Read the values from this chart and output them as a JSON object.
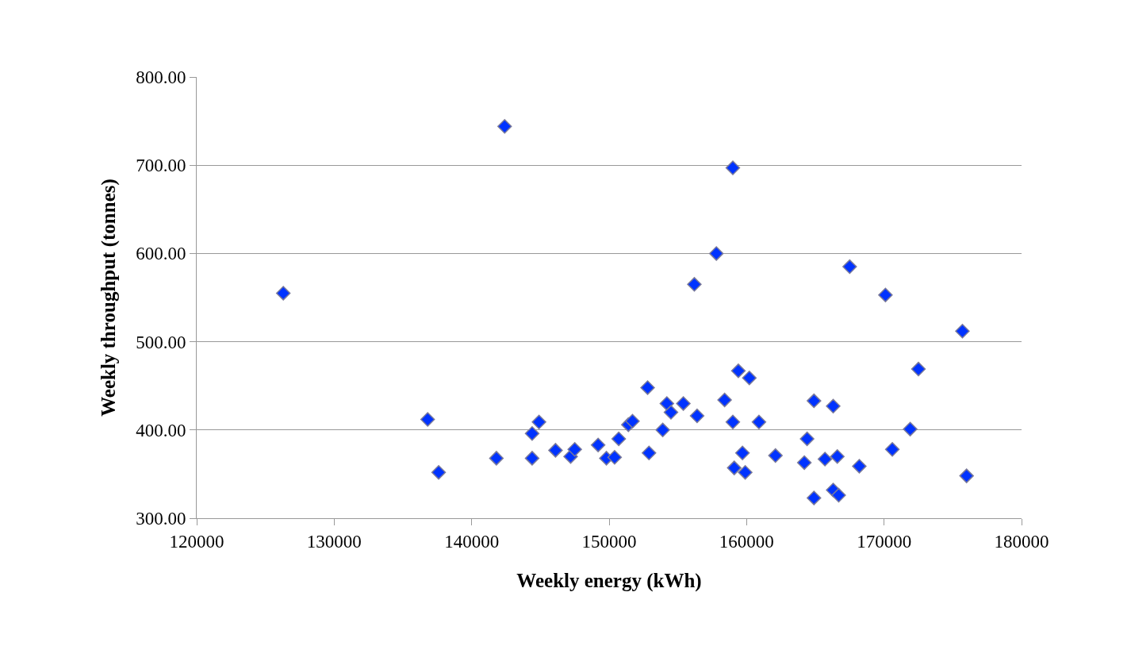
{
  "chart_data": {
    "type": "scatter",
    "xlabel": "Weekly energy (kWh)",
    "ylabel": "Weekly throughput (tonnes)",
    "xlim": [
      120000,
      180000
    ],
    "xticks": [
      120000,
      130000,
      140000,
      150000,
      160000,
      170000,
      180000
    ],
    "ylim": [
      300,
      800
    ],
    "yticks": [
      {
        "value": 300,
        "label": "300.00"
      },
      {
        "value": 400,
        "label": "400.00"
      },
      {
        "value": 500,
        "label": "500.00"
      },
      {
        "value": 600,
        "label": "600.00"
      },
      {
        "value": 700,
        "label": "700.00"
      },
      {
        "value": 800,
        "label": "800.00"
      }
    ],
    "grid": "y",
    "marker": "diamond",
    "series": [
      {
        "color": "#0033ff",
        "x": [
          142400,
          126300,
          136800,
          137600,
          141800,
          144400,
          144400,
          144900,
          146100,
          147200,
          147500,
          149200,
          157800,
          156200,
          167500,
          170100,
          175700,
          172500,
          159400,
          160200,
          152800,
          154200,
          154500,
          155400,
          156400,
          158400,
          164900,
          166300,
          151400,
          151700,
          153900,
          159000,
          160900,
          171900,
          149800,
          150400,
          150700,
          152900,
          159700,
          159100,
          159900,
          162100,
          164400,
          164200,
          165700,
          166600,
          168200,
          170600,
          176000,
          164900,
          166300,
          166700,
          159000
        ],
        "values": [
          744,
          555,
          412,
          352,
          368,
          368,
          396,
          409,
          377,
          370,
          378,
          383,
          600,
          565,
          585,
          553,
          512,
          469,
          467,
          459,
          448,
          430,
          420,
          430,
          416,
          434,
          433,
          427,
          406,
          410,
          400,
          409,
          409,
          401,
          368,
          369,
          390,
          374,
          374,
          357,
          352,
          371,
          390,
          363,
          367,
          370,
          359,
          378,
          348,
          323,
          332,
          326,
          697
        ]
      }
    ]
  }
}
